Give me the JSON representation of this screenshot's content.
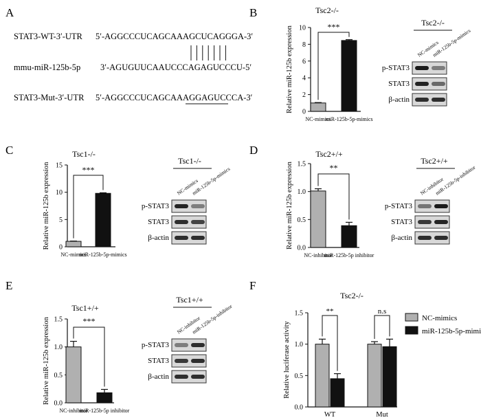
{
  "panel_letters": [
    "A",
    "B",
    "C",
    "D",
    "E",
    "F"
  ],
  "panel_a": {
    "rows": [
      {
        "label": "STAT3-WT-3′-UTR",
        "seq": "5′-AGGCCCUCAGCAAAGCUCAGGGA-3′"
      },
      {
        "label": "mmu-miR-125b-5p",
        "seq": "3′-AGUGUUCAAUCCCAGAGUCCCU-5′"
      },
      {
        "label": "STAT3-Mut-3′-UTR",
        "seq": "5′-AGGCCCUCAGCAAAGGAGUCCCA-3′"
      }
    ],
    "pair_lines": 7
  },
  "blots": [
    {
      "title": "Tsc2-/-",
      "lanes": [
        "NC-mimics",
        "miR-125b-5p-mimics"
      ],
      "rows": [
        "p-STAT3",
        "STAT3",
        "β-actin"
      ]
    },
    {
      "title": "Tsc1-/-",
      "lanes": [
        "NC-mimics",
        "miR-125b-5p-mimics"
      ],
      "rows": [
        "p-STAT3",
        "STAT3",
        "β-actin"
      ]
    },
    {
      "title": "Tsc2+/+",
      "lanes": [
        "NC-inhibitor",
        "miR-125b-5p-inhibitor"
      ],
      "rows": [
        "p-STAT3",
        "STAT3",
        "β-actin"
      ]
    },
    {
      "title": "Tsc1+/+",
      "lanes": [
        "NC-inhibitor",
        "miR-125b-5p-inhibitor"
      ],
      "rows": [
        "p-STAT3",
        "STAT3",
        "β-actin"
      ]
    }
  ],
  "chart_data": [
    {
      "panel": "B",
      "type": "bar",
      "title": "Tsc2-/-",
      "ylabel": "Relative miR-125b expression",
      "categories": [
        "NC-mimics",
        "miR-125b-5p-mimics"
      ],
      "values": [
        1.0,
        8.45
      ],
      "errors": [
        0.05,
        0.1
      ],
      "colors": [
        "#b0b0b0",
        "#111111"
      ],
      "ylim": [
        0,
        10
      ],
      "yticks": [
        "0",
        "2",
        "4",
        "6",
        "8",
        "10"
      ],
      "significance": "***"
    },
    {
      "panel": "C",
      "type": "bar",
      "title": "Tsc1-/-",
      "ylabel": "Relative miR-125b expression",
      "categories": [
        "NC-mimics",
        "miR-125b-5p-mimics"
      ],
      "values": [
        1.0,
        9.8
      ],
      "errors": [
        0.05,
        0.1
      ],
      "colors": [
        "#b0b0b0",
        "#111111"
      ],
      "ylim": [
        0,
        15
      ],
      "yticks": [
        "0",
        "5",
        "10",
        "15"
      ],
      "significance": "***"
    },
    {
      "panel": "D",
      "type": "bar",
      "title": "Tsc2+/+",
      "ylabel": "Relative miR-125b expression",
      "categories": [
        "NC-inhibitor",
        "miR-125b-5p inhibitor"
      ],
      "values": [
        1.01,
        0.39
      ],
      "errors": [
        0.04,
        0.06
      ],
      "colors": [
        "#b0b0b0",
        "#111111"
      ],
      "ylim": [
        0,
        1.5
      ],
      "yticks": [
        "0.0",
        "0.5",
        "1.0",
        "1.5"
      ],
      "significance": "**"
    },
    {
      "panel": "E",
      "type": "bar",
      "title": "Tsc1+/+",
      "ylabel": "Relative miR-125b expression",
      "categories": [
        "NC-inhibitor",
        "miR-125b-5p inhibitor"
      ],
      "values": [
        1.0,
        0.18
      ],
      "errors": [
        0.1,
        0.06
      ],
      "colors": [
        "#b0b0b0",
        "#111111"
      ],
      "ylim": [
        0,
        1.5
      ],
      "yticks": [
        "0.0",
        "0.5",
        "1.0",
        "1.5"
      ],
      "significance": "***"
    },
    {
      "panel": "F",
      "type": "bar",
      "title": "Tsc2-/-",
      "ylabel": "Relative luciferase activity",
      "categories": [
        "WT",
        "Mut"
      ],
      "series": [
        {
          "name": "NC-mimics",
          "values": [
            1.0,
            1.0
          ],
          "errors": [
            0.08,
            0.04
          ],
          "color": "#b0b0b0"
        },
        {
          "name": "miR-125b-5p-mimics",
          "values": [
            0.45,
            0.96
          ],
          "errors": [
            0.08,
            0.12
          ],
          "color": "#111111"
        }
      ],
      "ylim": [
        0,
        1.5
      ],
      "yticks": [
        "0.0",
        "0.5",
        "1.0",
        "1.5"
      ],
      "significance": [
        "**",
        "n.s"
      ],
      "legend": "top-right"
    }
  ]
}
